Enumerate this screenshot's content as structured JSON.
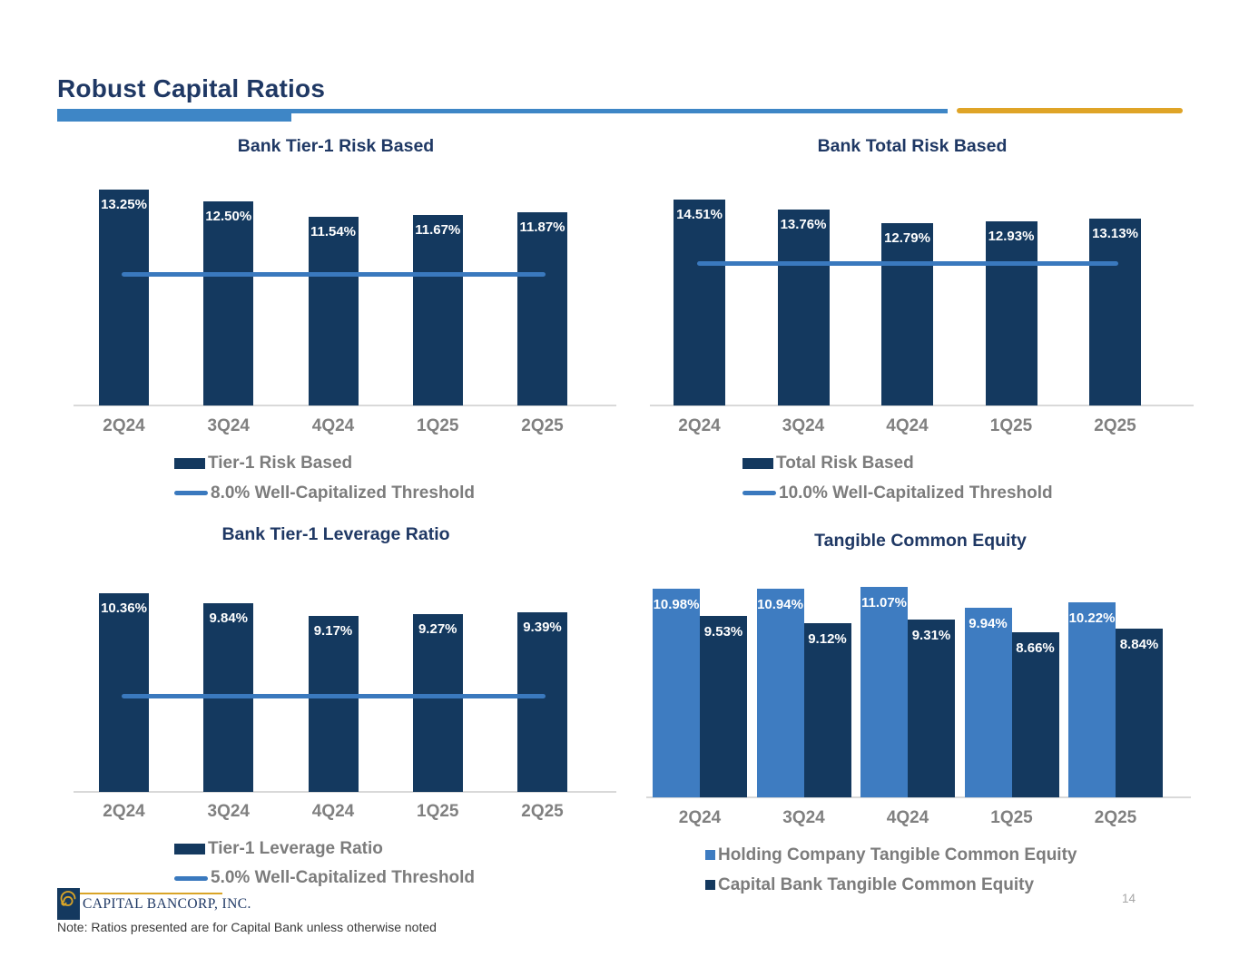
{
  "slide": {
    "title": "Robust Capital Ratios",
    "note": "Note: Ratios presented are for Capital Bank unless otherwise noted",
    "page_number": "14"
  },
  "logo": {
    "text": "CAPITAL BANCORP, INC."
  },
  "palette": {
    "navy_bar": "#14395F",
    "light_blue_bar": "#3E7CC1",
    "threshold_blue": "#3A79BE",
    "header_blue": "#3E86C6",
    "gold": "#DFA427",
    "title_navy": "#1F3864",
    "legend_gray": "#7C7C7C",
    "axis_label_gray": "#808080",
    "axis_line_gray": "#D9D9D9"
  },
  "chart_data": [
    {
      "id": "bank-tier1-risk-based",
      "type": "bar",
      "title": "Bank Tier-1 Risk Based",
      "categories": [
        "2Q24",
        "3Q24",
        "4Q24",
        "1Q25",
        "2Q25"
      ],
      "series": [
        {
          "name": "Tier-1 Risk Based",
          "color": "#14395F",
          "values": [
            13.25,
            12.5,
            11.54,
            11.67,
            11.87
          ]
        }
      ],
      "data_labels": [
        "13.25%",
        "12.50%",
        "11.54%",
        "11.67%",
        "11.87%"
      ],
      "threshold": {
        "value": 8.0,
        "label": "8.0% Well-Capitalized Threshold",
        "color": "#3A79BE"
      },
      "legend_position": "bottom-left",
      "grid": false,
      "ylim": [
        0,
        14
      ],
      "value_suffix": "%"
    },
    {
      "id": "bank-total-risk-based",
      "type": "bar",
      "title": "Bank Total Risk Based",
      "categories": [
        "2Q24",
        "3Q24",
        "4Q24",
        "1Q25",
        "2Q25"
      ],
      "series": [
        {
          "name": "Total Risk Based",
          "color": "#14395F",
          "values": [
            14.51,
            13.76,
            12.79,
            12.93,
            13.13
          ]
        }
      ],
      "data_labels": [
        "14.51%",
        "13.76%",
        "12.79%",
        "12.93%",
        "13.13%"
      ],
      "threshold": {
        "value": 10.0,
        "label": "10.0% Well-Capitalized Threshold",
        "color": "#3A79BE"
      },
      "legend_position": "bottom-left",
      "grid": false,
      "ylim": [
        0,
        15.5
      ],
      "value_suffix": "%"
    },
    {
      "id": "bank-tier1-leverage-ratio",
      "type": "bar",
      "title": "Bank Tier-1 Leverage Ratio",
      "categories": [
        "2Q24",
        "3Q24",
        "4Q24",
        "1Q25",
        "2Q25"
      ],
      "series": [
        {
          "name": "Tier-1 Leverage Ratio",
          "color": "#14395F",
          "values": [
            10.36,
            9.84,
            9.17,
            9.27,
            9.39
          ]
        }
      ],
      "data_labels": [
        "10.36%",
        "9.84%",
        "9.17%",
        "9.27%",
        "9.39%"
      ],
      "threshold": {
        "value": 5.0,
        "label": "5.0% Well-Capitalized Threshold",
        "color": "#3A79BE"
      },
      "legend_position": "bottom-left",
      "grid": false,
      "ylim": [
        0,
        11
      ],
      "value_suffix": "%"
    },
    {
      "id": "tangible-common-equity",
      "type": "bar",
      "title": "Tangible Common Equity",
      "categories": [
        "2Q24",
        "3Q24",
        "4Q24",
        "1Q25",
        "2Q25"
      ],
      "series": [
        {
          "name": "Holding Company Tangible Common Equity",
          "color": "#3E7CC1",
          "values": [
            10.98,
            10.94,
            11.07,
            9.94,
            10.22
          ]
        },
        {
          "name": "Capital Bank Tangible Common Equity",
          "color": "#14395F",
          "values": [
            9.53,
            9.12,
            9.31,
            8.66,
            8.84
          ]
        }
      ],
      "data_labels": [
        [
          "10.98%",
          "10.94%",
          "11.07%",
          "9.94%",
          "10.22%"
        ],
        [
          "9.53%",
          "9.12%",
          "9.31%",
          "8.66%",
          "8.84%"
        ]
      ],
      "legend_position": "bottom-left",
      "grid": false,
      "ylim": [
        0,
        11.5
      ],
      "value_suffix": "%"
    }
  ]
}
